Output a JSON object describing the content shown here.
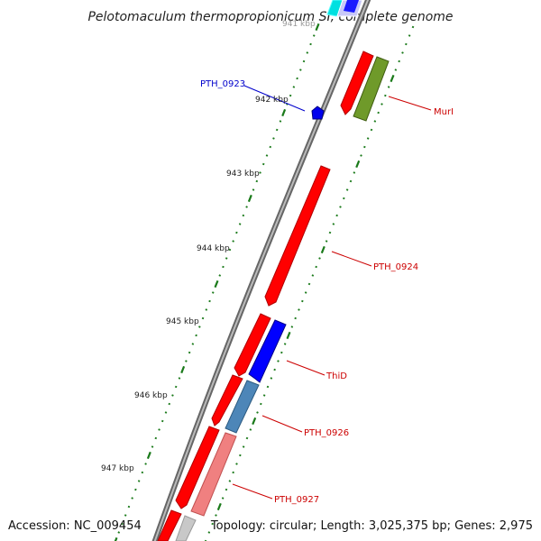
{
  "title": "Pelotomaculum thermopropionicum SI, complete genome",
  "partial_top_label": "941 kbp",
  "kbp_labels": [
    "942 kbp",
    "943 kbp",
    "944 kbp",
    "945 kbp",
    "946 kbp",
    "947 kbp"
  ],
  "genes": [
    {
      "name": "PTH_0923",
      "color": "#0000cc"
    },
    {
      "name": "MurI",
      "color": "#cc0000"
    },
    {
      "name": "PTH_0924",
      "color": "#cc0000"
    },
    {
      "name": "ThiD",
      "color": "#cc0000"
    },
    {
      "name": "PTH_0926",
      "color": "#cc0000"
    },
    {
      "name": "PTH_0927",
      "color": "#cc0000"
    }
  ],
  "footer": {
    "accession": "Accession: NC_009454",
    "topology": "Topology: circular; Length: 3,025,375 bp; Genes: 2,975"
  },
  "colors": {
    "backbone": "#808080",
    "tick": "#1a7a1a",
    "red_gene": "#ff0000",
    "blue_gene": "#0000ff",
    "olive_gene": "#6f9a2a",
    "steel_gene": "#4d86b8",
    "pink_gene": "#f08080",
    "cyan_gene": "#00e0e0",
    "lavender_gene": "#c8c8f8",
    "grey_gene": "#c8c8c8"
  }
}
